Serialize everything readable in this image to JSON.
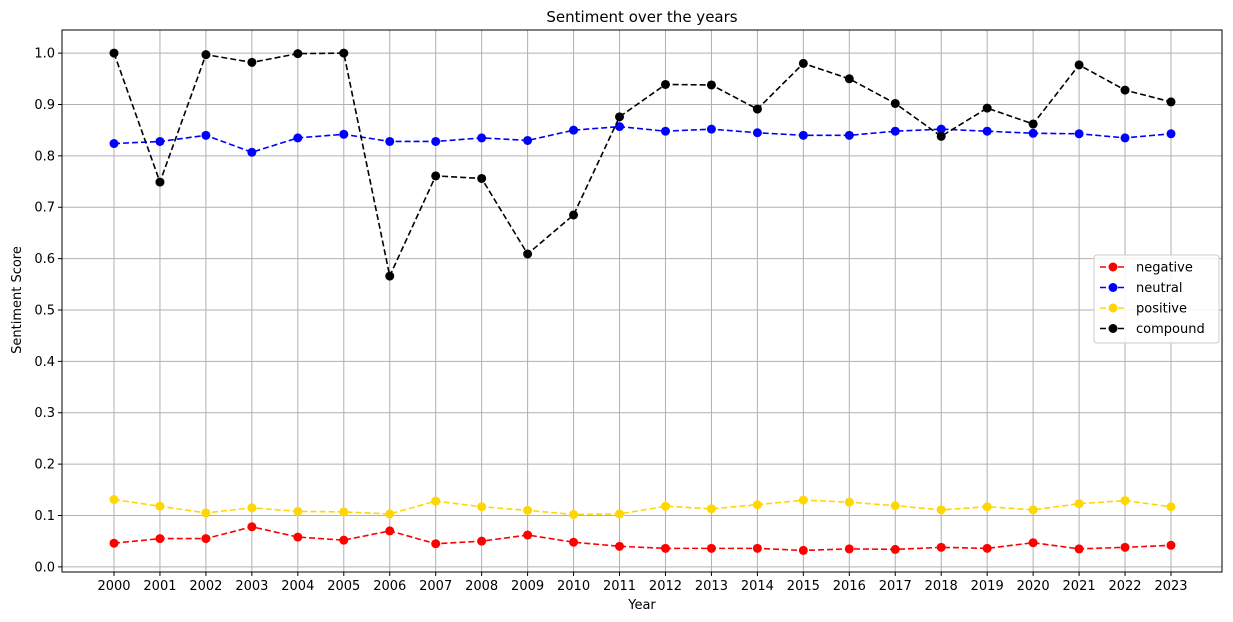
{
  "chart_data": {
    "type": "line",
    "title": "Sentiment over the years",
    "xlabel": "Year",
    "ylabel": "Sentiment Score",
    "categories": [
      "2000",
      "2001",
      "2002",
      "2003",
      "2004",
      "2005",
      "2006",
      "2007",
      "2008",
      "2009",
      "2010",
      "2011",
      "2012",
      "2013",
      "2014",
      "2015",
      "2016",
      "2017",
      "2018",
      "2019",
      "2020",
      "2021",
      "2022",
      "2023"
    ],
    "ylim": [
      -0.01,
      1.045
    ],
    "yticks": [
      "0.0",
      "0.1",
      "0.2",
      "0.3",
      "0.4",
      "0.5",
      "0.6",
      "0.7",
      "0.8",
      "0.9",
      "1.0"
    ],
    "grid": true,
    "legend_position": "center-right",
    "line_style": "dashed",
    "marker": "circle",
    "series": [
      {
        "name": "negative",
        "color": "#ff0000",
        "values": [
          0.046,
          0.055,
          0.055,
          0.078,
          0.058,
          0.052,
          0.07,
          0.045,
          0.05,
          0.062,
          0.048,
          0.04,
          0.036,
          0.036,
          0.036,
          0.032,
          0.035,
          0.034,
          0.038,
          0.036,
          0.047,
          0.035,
          0.038,
          0.042
        ]
      },
      {
        "name": "neutral",
        "color": "#0000ff",
        "values": [
          0.824,
          0.828,
          0.84,
          0.807,
          0.835,
          0.842,
          0.828,
          0.828,
          0.835,
          0.83,
          0.85,
          0.857,
          0.848,
          0.852,
          0.845,
          0.84,
          0.84,
          0.848,
          0.852,
          0.848,
          0.844,
          0.843,
          0.835,
          0.843
        ]
      },
      {
        "name": "positive",
        "color": "#ffd700",
        "values": [
          0.131,
          0.118,
          0.105,
          0.115,
          0.108,
          0.107,
          0.103,
          0.128,
          0.117,
          0.11,
          0.102,
          0.103,
          0.118,
          0.113,
          0.121,
          0.13,
          0.126,
          0.119,
          0.111,
          0.117,
          0.111,
          0.123,
          0.129,
          0.117
        ]
      },
      {
        "name": "compound",
        "color": "#000000",
        "values": [
          1.0,
          0.749,
          0.997,
          0.982,
          0.999,
          1.0,
          0.566,
          0.761,
          0.756,
          0.609,
          0.685,
          0.876,
          0.939,
          0.938,
          0.891,
          0.98,
          0.95,
          0.902,
          0.838,
          0.893,
          0.862,
          0.977,
          0.928,
          0.905
        ]
      }
    ]
  }
}
